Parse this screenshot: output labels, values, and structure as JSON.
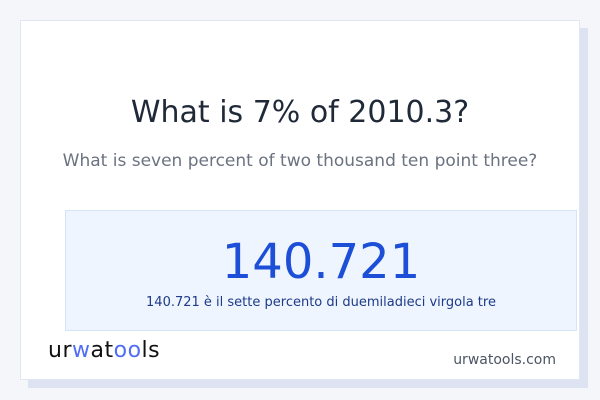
{
  "question": "What is 7% of 2010.3?",
  "question_words": "What is seven percent of two thousand ten point three?",
  "result": {
    "value": "140.721",
    "description": "140.721 è il sette percento di duemiladieci virgola tre"
  },
  "footer": {
    "logo": "urwatools",
    "site": "urwatools.com"
  },
  "colors": {
    "accent": "#1d4ed8",
    "logo_accent": "#4f6df5"
  }
}
